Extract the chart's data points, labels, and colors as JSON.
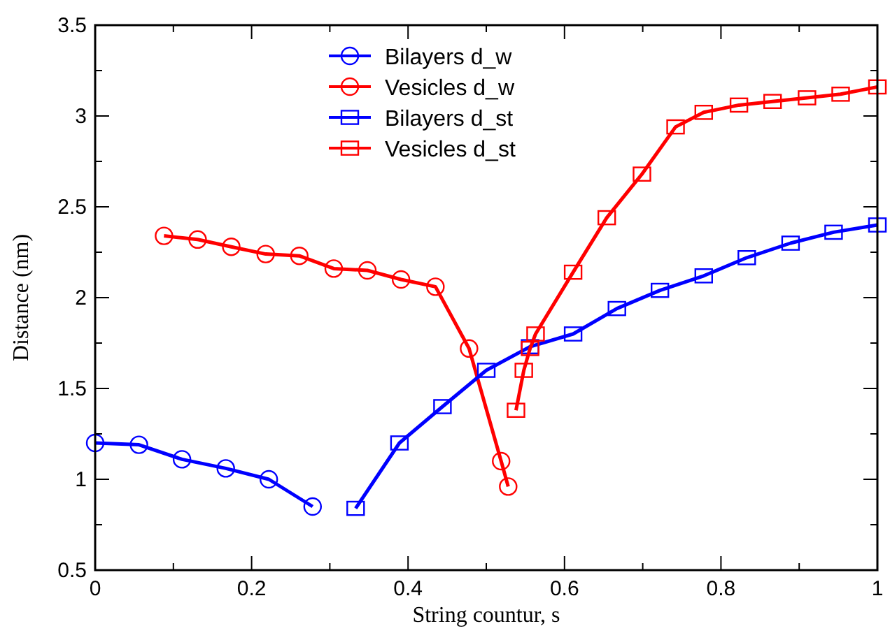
{
  "chart_data": {
    "type": "line",
    "xlabel": "String countur, s",
    "ylabel": "Distance (nm)",
    "xlim": [
      0,
      1
    ],
    "ylim": [
      0.5,
      3.5
    ],
    "xticks": [
      0,
      {
        "value": 0.1,
        "label": null
      },
      0.2,
      {
        "value": 0.3,
        "label": null
      },
      0.4,
      {
        "value": 0.5,
        "label": null
      },
      0.6,
      {
        "value": 0.7,
        "label": null
      },
      0.8,
      {
        "value": 0.9,
        "label": null
      },
      1
    ],
    "yticks": [
      0.5,
      {
        "value": 0.75,
        "label": null
      },
      1,
      {
        "value": 1.25,
        "label": null
      },
      1.5,
      {
        "value": 1.75,
        "label": null
      },
      2,
      {
        "value": 2.25,
        "label": null
      },
      2.5,
      {
        "value": 2.75,
        "label": null
      },
      3,
      {
        "value": 3.25,
        "label": null
      },
      3.5
    ],
    "grid": false,
    "legend": "top",
    "line_style": "solid",
    "series": [
      {
        "name": "Bilayers d_w",
        "color": "#0000ff",
        "marker": "circle",
        "x": [
          0,
          0.056,
          0.111,
          0.167,
          0.222,
          0.278
        ],
        "values": [
          1.2,
          1.19,
          1.11,
          1.06,
          1.0,
          0.85
        ]
      },
      {
        "name": "Vesicles d_w",
        "color": "#ff0000",
        "marker": "circle",
        "x": [
          0.088,
          0.131,
          0.174,
          0.218,
          0.261,
          0.305,
          0.348,
          0.391,
          0.435,
          0.478,
          0.519,
          0.528
        ],
        "values": [
          2.34,
          2.32,
          2.28,
          2.24,
          2.23,
          2.16,
          2.15,
          2.1,
          2.06,
          1.72,
          1.1,
          0.96
        ]
      },
      {
        "name": "Bilayers d_st",
        "color": "#0000ff",
        "marker": "square",
        "x": [
          0.333,
          0.389,
          0.444,
          0.5,
          0.556,
          0.611,
          0.667,
          0.722,
          0.778,
          0.833,
          0.889,
          0.944,
          1.0
        ],
        "values": [
          0.84,
          1.2,
          1.4,
          1.6,
          1.73,
          1.8,
          1.94,
          2.04,
          2.12,
          2.22,
          2.3,
          2.36,
          2.4
        ]
      },
      {
        "name": "Vesicles d_st",
        "color": "#ff0000",
        "marker": "square",
        "x": [
          0.538,
          0.548,
          0.556,
          0.563,
          0.611,
          0.654,
          0.699,
          0.742,
          0.778,
          0.823,
          0.866,
          0.91,
          0.953,
          1.0
        ],
        "values": [
          1.38,
          1.6,
          1.72,
          1.8,
          2.14,
          2.44,
          2.68,
          2.94,
          3.02,
          3.06,
          3.08,
          3.1,
          3.12,
          3.16
        ]
      }
    ]
  }
}
